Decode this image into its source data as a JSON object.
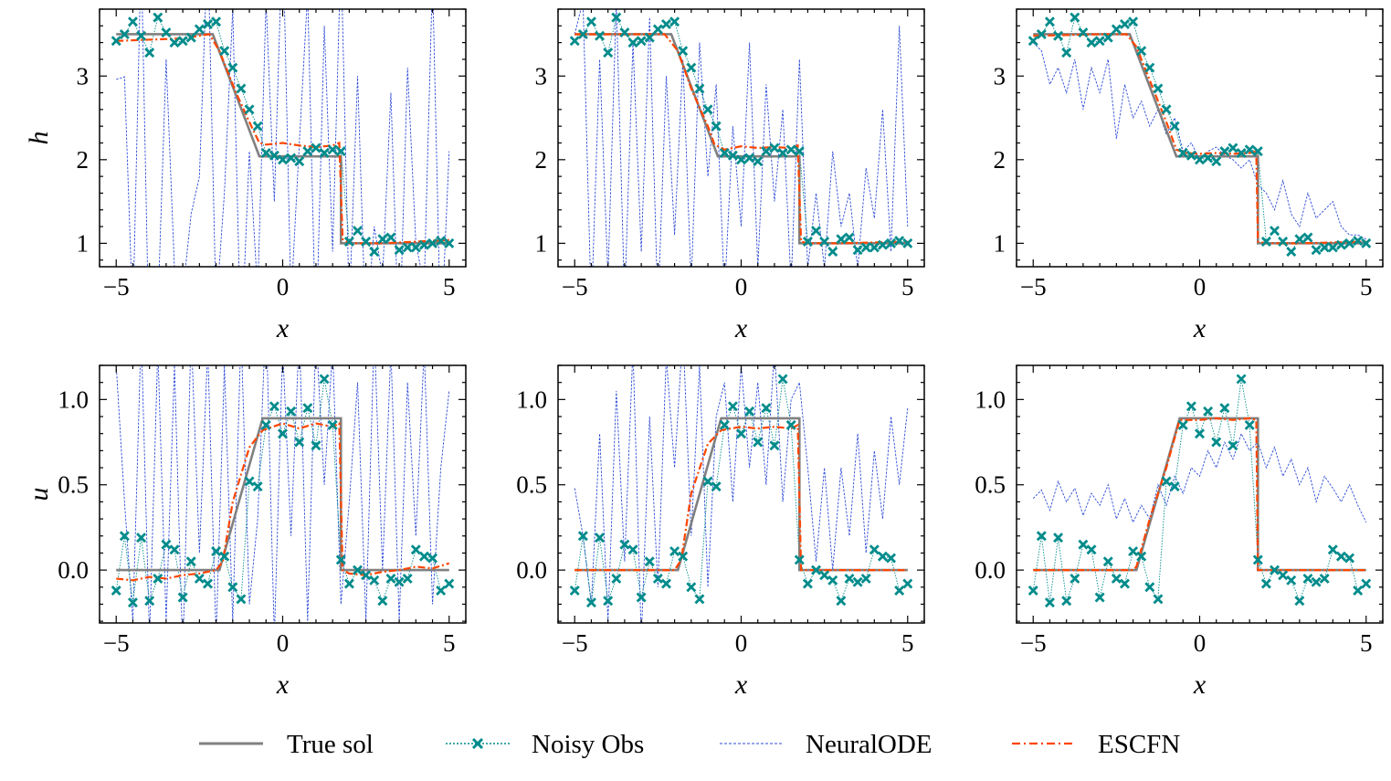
{
  "chart_data": {
    "type": "line",
    "layout": "2x3 grid",
    "legend": {
      "position": "bottom-center",
      "entries": [
        {
          "key": "true",
          "label": "True sol",
          "color": "#808080",
          "style": "solid"
        },
        {
          "key": "noisy",
          "label": "Noisy Obs",
          "color": "#008b8b",
          "style": "dotted with x markers"
        },
        {
          "key": "node",
          "label": "NeuralODE",
          "color": "#2e4bd8",
          "style": "dashed thin"
        },
        {
          "key": "escfn",
          "label": "ESCFN",
          "color": "#ff4500",
          "style": "dash-dot"
        }
      ]
    },
    "x_obs": [
      -5.0,
      -4.75,
      -4.5,
      -4.25,
      -4.0,
      -3.75,
      -3.5,
      -3.25,
      -3.0,
      -2.75,
      -2.5,
      -2.25,
      -2.0,
      -1.75,
      -1.5,
      -1.25,
      -1.0,
      -0.75,
      -0.5,
      -0.25,
      0.0,
      0.25,
      0.5,
      0.75,
      1.0,
      1.25,
      1.5,
      1.75,
      2.0,
      2.25,
      2.5,
      2.75,
      3.0,
      3.25,
      3.5,
      3.75,
      4.0,
      4.25,
      4.5,
      4.75,
      5.0
    ],
    "rows": [
      {
        "ylabel": "h",
        "ylim": [
          0.72,
          3.8
        ],
        "yticks": [
          1,
          2,
          3
        ],
        "ytick_labels": [
          "1",
          "2",
          "3"
        ],
        "minor_step": 0.2,
        "true_sol": {
          "x": [
            -5,
            -2.1,
            -0.7,
            1.75,
            1.75,
            5
          ],
          "y": [
            3.5,
            3.5,
            2.04,
            2.04,
            1.0,
            1.0
          ]
        },
        "noisy_obs": [
          3.42,
          3.5,
          3.65,
          3.48,
          3.28,
          3.7,
          3.52,
          3.4,
          3.42,
          3.46,
          3.56,
          3.62,
          3.65,
          3.3,
          3.1,
          2.85,
          2.6,
          2.4,
          2.08,
          2.05,
          2.0,
          2.02,
          1.98,
          2.1,
          2.14,
          2.08,
          2.12,
          2.1,
          1.02,
          1.15,
          1.02,
          0.9,
          1.05,
          1.07,
          0.92,
          0.95,
          0.95,
          0.98,
          1.0,
          1.03,
          1.0
        ],
        "panels": [
          {
            "xlabel": "x",
            "xlim": [
              -5.5,
              5.5
            ],
            "xticks": [
              -5,
              0,
              5
            ],
            "xtick_labels": [
              "−5",
              "0",
              "5"
            ],
            "escfn": {
              "x": [
                -5,
                -3,
                -2.2,
                -1.9,
                -1.4,
                -1.0,
                -0.7,
                -0.5,
                0,
                0.5,
                1.0,
                1.5,
                1.7,
                1.8,
                2.0,
                3.0,
                4.0,
                5.0
              ],
              "y": [
                3.42,
                3.45,
                3.5,
                3.3,
                2.8,
                2.45,
                2.2,
                2.18,
                2.2,
                2.17,
                2.15,
                2.17,
                2.2,
                1.05,
                1.0,
                1.0,
                1.02,
                1.04
              ]
            },
            "neural_ode": [
              2.96,
              2.99,
              0.1,
              4.5,
              -0.5,
              0.2,
              3.2,
              0.7,
              0.4,
              1.35,
              1.8,
              4.6,
              0.2,
              1.6,
              3.8,
              -0.3,
              2.1,
              0.4,
              3.9,
              1.5,
              4.8,
              0.3,
              2.2,
              4.0,
              -0.2,
              3.6,
              0.9,
              4.5,
              0.2,
              3.0,
              -0.1,
              1.2,
              0.6,
              2.8,
              -0.3,
              3.1,
              1.0,
              0.5,
              4.2,
              -0.2,
              2.1
            ]
          },
          {
            "xlabel": "x",
            "xlim": [
              -5.5,
              5.5
            ],
            "xticks": [
              -5,
              0,
              5
            ],
            "xtick_labels": [
              "−5",
              "0",
              "5"
            ],
            "escfn": {
              "x": [
                -5,
                -3,
                -2.3,
                -1.9,
                -1.5,
                -1.0,
                -0.8,
                -0.5,
                0,
                0.5,
                1.0,
                1.5,
                1.7,
                1.8,
                2.0,
                3.0,
                4.0,
                5.0
              ],
              "y": [
                3.5,
                3.5,
                3.5,
                3.3,
                2.85,
                2.4,
                2.18,
                2.12,
                2.16,
                2.14,
                2.15,
                2.14,
                2.17,
                1.02,
                1.0,
                1.0,
                1.01,
                1.02
              ]
            },
            "neural_ode": [
              3.5,
              3.9,
              0.2,
              3.2,
              0.6,
              3.9,
              0.3,
              3.4,
              0.9,
              3.7,
              0.2,
              3.0,
              1.1,
              3.2,
              0.5,
              3.4,
              1.8,
              2.9,
              0.4,
              2.4,
              1.2,
              3.4,
              0.7,
              2.9,
              1.5,
              2.6,
              0.5,
              3.2,
              0.7,
              1.6,
              0.7,
              2.1,
              1.2,
              1.6,
              0.7,
              1.9,
              1.3,
              2.6,
              0.9,
              3.6,
              1.2
            ]
          },
          {
            "xlabel": "x",
            "xlim": [
              -5.5,
              5.5
            ],
            "xticks": [
              -5,
              0,
              5
            ],
            "xtick_labels": [
              "−5",
              "0",
              "5"
            ],
            "escfn": {
              "x": [
                -5,
                -3,
                -2.2,
                -1.9,
                -1.4,
                -1.0,
                -0.7,
                -0.4,
                0,
                0.5,
                1.0,
                1.5,
                1.7,
                1.75,
                2.0,
                3.0,
                4.0,
                5.0
              ],
              "y": [
                3.48,
                3.5,
                3.5,
                3.35,
                2.85,
                2.45,
                2.12,
                2.08,
                2.07,
                2.08,
                2.07,
                2.08,
                2.1,
                1.02,
                1.0,
                1.0,
                1.01,
                1.02
              ]
            },
            "neural_ode": [
              3.4,
              3.3,
              2.9,
              3.1,
              2.8,
              3.2,
              2.6,
              3.1,
              2.8,
              3.2,
              2.25,
              2.9,
              2.5,
              2.7,
              2.4,
              2.6,
              2.3,
              2.5,
              2.1,
              2.2,
              2.0,
              2.1,
              2.15,
              2.05,
              2.0,
              1.9,
              2.0,
              1.7,
              1.6,
              1.4,
              1.75,
              1.35,
              1.2,
              1.6,
              1.3,
              1.4,
              1.5,
              1.2,
              1.1,
              1.1,
              1.05
            ]
          }
        ]
      },
      {
        "ylabel": "u",
        "ylim": [
          -0.31,
          1.2
        ],
        "yticks": [
          0.0,
          0.5,
          1.0
        ],
        "ytick_labels": [
          "0.0",
          "0.5",
          "1.0"
        ],
        "minor_step": 0.1,
        "true_sol": {
          "x": [
            -5,
            -1.9,
            -0.6,
            1.75,
            1.75,
            5
          ],
          "y": [
            0,
            0,
            0.89,
            0.89,
            0.0,
            0.0
          ]
        },
        "noisy_obs": [
          -0.12,
          0.2,
          -0.19,
          0.19,
          -0.18,
          -0.05,
          0.15,
          0.12,
          -0.16,
          0.05,
          -0.05,
          -0.08,
          0.11,
          0.08,
          -0.1,
          -0.17,
          0.52,
          0.49,
          0.85,
          0.96,
          0.8,
          0.93,
          0.75,
          0.95,
          0.73,
          1.12,
          0.85,
          0.06,
          -0.08,
          0.0,
          -0.03,
          -0.06,
          -0.18,
          -0.05,
          -0.07,
          -0.05,
          0.12,
          0.08,
          0.07,
          -0.12,
          -0.08
        ],
        "panels": [
          {
            "xlabel": "x",
            "xlim": [
              -5.5,
              5.5
            ],
            "xticks": [
              -5,
              0,
              5
            ],
            "xtick_labels": [
              "−5",
              "0",
              "5"
            ],
            "escfn": {
              "x": [
                -5,
                -4.5,
                -4.0,
                -3.5,
                -3.0,
                -2.5,
                -2.0,
                -1.8,
                -1.5,
                -1.0,
                -0.6,
                -0.3,
                0,
                0.5,
                1.0,
                1.5,
                1.7,
                1.8,
                2.0,
                2.5,
                3.0,
                3.5,
                4.0,
                4.5,
                5.0
              ],
              "y": [
                -0.05,
                -0.06,
                -0.04,
                -0.05,
                -0.03,
                -0.02,
                0.0,
                0.05,
                0.4,
                0.72,
                0.82,
                0.84,
                0.86,
                0.83,
                0.86,
                0.84,
                0.86,
                0.0,
                -0.02,
                -0.03,
                -0.01,
                0.0,
                0.02,
                0.01,
                0.04
              ]
            },
            "neural_ode": [
              1.2,
              0.4,
              -0.3,
              1.4,
              -0.4,
              1.3,
              -0.3,
              1.2,
              -0.5,
              1.4,
              0.1,
              1.3,
              -0.4,
              1.2,
              -0.3,
              1.4,
              -0.2,
              0.3,
              1.5,
              -0.4,
              1.3,
              0.2,
              1.4,
              -0.3,
              1.4,
              0.5,
              1.3,
              -0.2,
              0.4,
              1.1,
              -0.3,
              1.4,
              0.0,
              1.3,
              -0.3,
              1.1,
              0.2,
              1.3,
              -0.2,
              0.6,
              1.05
            ]
          },
          {
            "xlabel": "x",
            "xlim": [
              -5.5,
              5.5
            ],
            "xticks": [
              -5,
              0,
              5
            ],
            "xtick_labels": [
              "−5",
              "0",
              "5"
            ],
            "escfn": {
              "x": [
                -5,
                -4.0,
                -3.0,
                -2.0,
                -1.8,
                -1.5,
                -1.0,
                -0.6,
                -0.3,
                0,
                0.5,
                1.0,
                1.5,
                1.7,
                1.8,
                2.0,
                3.0,
                4.0,
                5.0
              ],
              "y": [
                0.0,
                0.0,
                0.0,
                0.0,
                0.06,
                0.45,
                0.74,
                0.82,
                0.83,
                0.84,
                0.83,
                0.84,
                0.83,
                0.85,
                0.0,
                0.0,
                0.0,
                0.0,
                0.0
              ]
            },
            "neural_ode": [
              0.48,
              0.2,
              -0.2,
              0.8,
              -0.3,
              1.05,
              0.05,
              1.3,
              -0.4,
              0.9,
              -0.1,
              1.25,
              0.6,
              1.4,
              0.2,
              1.2,
              -0.1,
              0.9,
              1.1,
              0.4,
              1.2,
              0.6,
              1.1,
              0.5,
              1.3,
              0.4,
              1.0,
              1.1,
              0.6,
              0.05,
              0.6,
              0.0,
              0.6,
              0.2,
              0.8,
              0.1,
              0.7,
              0.3,
              0.9,
              0.5,
              0.95
            ]
          },
          {
            "xlabel": "x",
            "xlim": [
              -5.5,
              5.5
            ],
            "xticks": [
              -5,
              0,
              5
            ],
            "xtick_labels": [
              "−5",
              "0",
              "5"
            ],
            "escfn": {
              "x": [
                -5,
                -4.0,
                -3.0,
                -2.0,
                -1.9,
                -1.5,
                -1.0,
                -0.6,
                -0.3,
                0,
                0.5,
                1.0,
                1.5,
                1.7,
                1.75,
                2.0,
                3.0,
                4.0,
                5.0
              ],
              "y": [
                0.0,
                0.0,
                0.0,
                0.0,
                0.02,
                0.3,
                0.6,
                0.88,
                0.88,
                0.88,
                0.89,
                0.88,
                0.89,
                0.88,
                0.0,
                0.0,
                0.0,
                0.0,
                0.0
              ]
            },
            "neural_ode": [
              0.42,
              0.47,
              0.35,
              0.52,
              0.4,
              0.48,
              0.32,
              0.45,
              0.38,
              0.5,
              0.3,
              0.42,
              0.28,
              0.38,
              0.3,
              0.5,
              0.38,
              0.55,
              0.45,
              0.6,
              0.55,
              0.7,
              0.6,
              0.75,
              0.65,
              0.8,
              0.7,
              0.75,
              0.6,
              0.72,
              0.55,
              0.65,
              0.5,
              0.6,
              0.4,
              0.55,
              0.48,
              0.4,
              0.5,
              0.38,
              0.28
            ]
          }
        ]
      }
    ]
  }
}
